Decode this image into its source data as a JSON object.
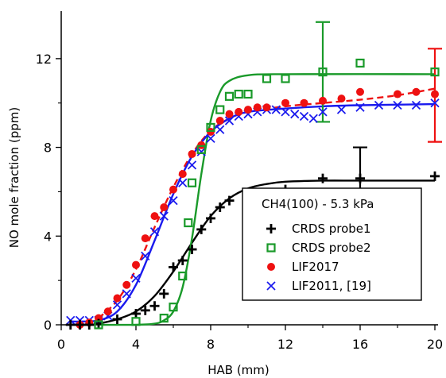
{
  "chart_data": {
    "type": "scatter",
    "xlabel": "HAB (mm)",
    "ylabel": "NO mole fraction (ppm)",
    "xlim": [
      0,
      20
    ],
    "ylim": [
      0,
      14
    ],
    "x_ticks": [
      0,
      4,
      8,
      12,
      16,
      20
    ],
    "y_ticks": [
      0,
      4,
      8,
      12
    ],
    "grid": false,
    "legend": {
      "placement": "bottom-right",
      "title": "CH4(100) - 5.3 kPa"
    },
    "series": [
      {
        "name": "CRDS probe1",
        "marker": "plus",
        "color": "#000000",
        "points": [
          [
            0.5,
            0
          ],
          [
            1,
            0
          ],
          [
            1.5,
            0
          ],
          [
            2,
            0.05
          ],
          [
            3,
            0.25
          ],
          [
            4,
            0.5
          ],
          [
            4.5,
            0.65
          ],
          [
            5,
            0.85
          ],
          [
            5.5,
            1.4
          ],
          [
            6,
            2.6
          ],
          [
            6.5,
            2.9
          ],
          [
            7,
            3.4
          ],
          [
            7.5,
            4.3
          ],
          [
            8,
            4.8
          ],
          [
            8.5,
            5.3
          ],
          [
            9,
            5.6
          ],
          [
            10,
            5.9
          ],
          [
            12,
            6.1
          ],
          [
            14,
            6.6
          ],
          [
            16,
            6.6
          ],
          [
            20,
            6.7
          ]
        ],
        "error_bars": [
          {
            "x": 16,
            "y": 6.6,
            "err": 1.4
          }
        ],
        "fit": {
          "color": "#000000",
          "dash": "solid",
          "points": [
            [
              2,
              0.05
            ],
            [
              3,
              0.25
            ],
            [
              4,
              0.6
            ],
            [
              5,
              1.3
            ],
            [
              6,
              2.4
            ],
            [
              7,
              3.7
            ],
            [
              8,
              4.9
            ],
            [
              9,
              5.7
            ],
            [
              10,
              6.15
            ],
            [
              11,
              6.35
            ],
            [
              12,
              6.45
            ],
            [
              14,
              6.5
            ],
            [
              16,
              6.5
            ],
            [
              20,
              6.5
            ]
          ]
        }
      },
      {
        "name": "CRDS probe2",
        "marker": "open-square",
        "color": "#1a9a2a",
        "points": [
          [
            2,
            0
          ],
          [
            4,
            0.15
          ],
          [
            5.5,
            0.3
          ],
          [
            6,
            0.8
          ],
          [
            6.5,
            2.2
          ],
          [
            6.8,
            4.6
          ],
          [
            7,
            6.4
          ],
          [
            7.5,
            7.9
          ],
          [
            8,
            8.9
          ],
          [
            8.5,
            9.7
          ],
          [
            9,
            10.3
          ],
          [
            9.5,
            10.4
          ],
          [
            10,
            10.4
          ],
          [
            11,
            11.1
          ],
          [
            12,
            11.1
          ],
          [
            14,
            11.4
          ],
          [
            16,
            11.8
          ],
          [
            20,
            11.4
          ]
        ],
        "error_bars": [
          {
            "x": 14,
            "y": 11.4,
            "err": 2.25
          }
        ],
        "fit": {
          "color": "#1a9a2a",
          "dash": "solid",
          "points": [
            [
              2,
              0
            ],
            [
              4,
              0
            ],
            [
              5,
              0.05
            ],
            [
              5.5,
              0.2
            ],
            [
              6,
              0.6
            ],
            [
              6.5,
              1.7
            ],
            [
              7,
              3.9
            ],
            [
              7.5,
              6.8
            ],
            [
              8,
              9.2
            ],
            [
              8.5,
              10.5
            ],
            [
              9,
              11
            ],
            [
              10,
              11.25
            ],
            [
              12,
              11.3
            ],
            [
              20,
              11.3
            ]
          ]
        }
      },
      {
        "name": "LIF2017",
        "marker": "filled-circle",
        "color": "#ee1111",
        "points": [
          [
            1,
            0
          ],
          [
            1.5,
            0.1
          ],
          [
            2,
            0.3
          ],
          [
            2.5,
            0.6
          ],
          [
            3,
            1.2
          ],
          [
            3.5,
            1.8
          ],
          [
            4,
            2.7
          ],
          [
            4.5,
            3.9
          ],
          [
            5,
            4.9
          ],
          [
            5.5,
            5.3
          ],
          [
            6,
            6.1
          ],
          [
            6.5,
            6.8
          ],
          [
            7,
            7.7
          ],
          [
            7.5,
            8.1
          ],
          [
            8,
            8.7
          ],
          [
            8.5,
            9.2
          ],
          [
            9,
            9.5
          ],
          [
            9.5,
            9.6
          ],
          [
            10,
            9.7
          ],
          [
            10.5,
            9.8
          ],
          [
            11,
            9.8
          ],
          [
            12,
            10
          ],
          [
            13,
            10
          ],
          [
            14,
            10.1
          ],
          [
            15,
            10.2
          ],
          [
            16,
            10.5
          ],
          [
            18,
            10.4
          ],
          [
            19,
            10.5
          ],
          [
            20,
            10.4
          ]
        ],
        "error_bars": [
          {
            "x": 20,
            "y": 10.35,
            "err": 2.1
          }
        ],
        "fit": {
          "color": "#ee1111",
          "dash": "dashed",
          "points": [
            [
              2,
              0.3
            ],
            [
              3,
              1.1
            ],
            [
              4,
              2.5
            ],
            [
              5,
              4.4
            ],
            [
              6,
              6.2
            ],
            [
              7,
              7.7
            ],
            [
              8,
              8.75
            ],
            [
              9,
              9.3
            ],
            [
              10,
              9.6
            ],
            [
              12,
              9.85
            ],
            [
              14,
              10
            ],
            [
              16,
              10.15
            ],
            [
              18,
              10.35
            ],
            [
              20,
              10.65
            ]
          ]
        }
      },
      {
        "name": "LIF2011, [19]",
        "marker": "x",
        "color": "#1a1aee",
        "points": [
          [
            0.5,
            0.2
          ],
          [
            1,
            0.2
          ],
          [
            1.5,
            0.2
          ],
          [
            2,
            0.2
          ],
          [
            2.5,
            0.4
          ],
          [
            3,
            0.9
          ],
          [
            3.5,
            1.4
          ],
          [
            4,
            2.1
          ],
          [
            4.5,
            3.1
          ],
          [
            5,
            4.2
          ],
          [
            5.5,
            4.9
          ],
          [
            6,
            5.6
          ],
          [
            6.5,
            6.4
          ],
          [
            7,
            7.2
          ],
          [
            7.5,
            7.8
          ],
          [
            8,
            8.4
          ],
          [
            8.5,
            8.8
          ],
          [
            9,
            9.2
          ],
          [
            9.5,
            9.4
          ],
          [
            10,
            9.5
          ],
          [
            10.5,
            9.6
          ],
          [
            11,
            9.7
          ],
          [
            11.5,
            9.7
          ],
          [
            12,
            9.6
          ],
          [
            12.5,
            9.5
          ],
          [
            13,
            9.4
          ],
          [
            13.5,
            9.3
          ],
          [
            14,
            9.6
          ],
          [
            15,
            9.7
          ],
          [
            16,
            9.8
          ],
          [
            17,
            9.9
          ],
          [
            18,
            9.9
          ],
          [
            19,
            9.9
          ],
          [
            20,
            10
          ]
        ],
        "fit": {
          "color": "#1a1aee",
          "dash": "solid",
          "points": [
            [
              0.5,
              0.15
            ],
            [
              1,
              0.15
            ],
            [
              2,
              0.2
            ],
            [
              3,
              0.6
            ],
            [
              4,
              1.8
            ],
            [
              5,
              3.8
            ],
            [
              6,
              5.9
            ],
            [
              7,
              7.6
            ],
            [
              8,
              8.7
            ],
            [
              9,
              9.3
            ],
            [
              10,
              9.6
            ],
            [
              12,
              9.75
            ],
            [
              14,
              9.85
            ],
            [
              16,
              9.9
            ],
            [
              20,
              9.95
            ]
          ]
        }
      }
    ]
  }
}
